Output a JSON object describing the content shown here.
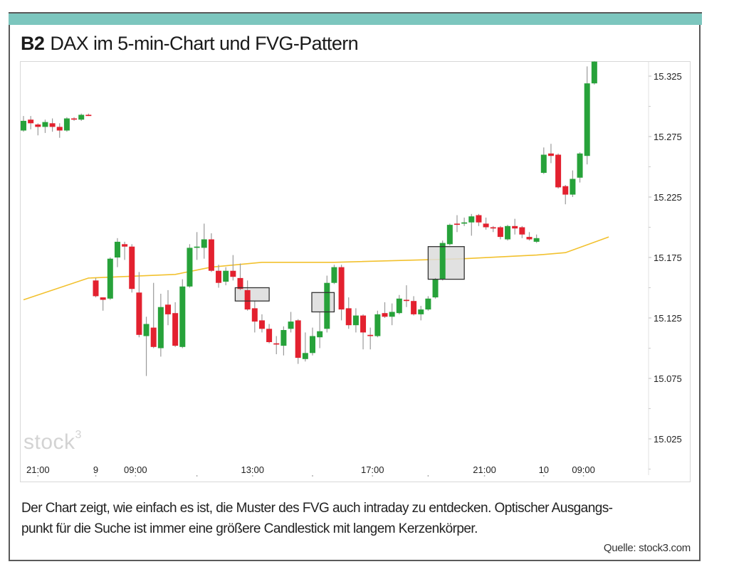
{
  "header": {
    "figure_label": "B2",
    "title": "DAX im 5-min-Chart und FVG-Pattern",
    "accent_color": "#7cc6be"
  },
  "logo": {
    "text": "stock",
    "superscript": "3"
  },
  "caption": {
    "line1": "Der Chart zeigt, wie einfach es ist, die Muster des FVG auch intraday zu entdecken. Optischer Ausgangs-",
    "line2": "punkt für die Suche ist immer eine größere Candlestick mit langem Kerzenkörper."
  },
  "source": "Quelle: stock3.com",
  "chart_data": {
    "type": "candlestick",
    "title": "DAX im 5-min-Chart und FVG-Pattern",
    "colors": {
      "up": "#27a23a",
      "down": "#e3212f",
      "wick": "#9a9a9a",
      "moving_average": "#f2c12e",
      "fvg_box": "#dcdcdc"
    },
    "y_axis": {
      "position": "right",
      "ylim": [
        15000,
        15338
      ],
      "ticks": [
        {
          "value": 15325,
          "label": "15.325"
        },
        {
          "value": 15275,
          "label": "15.275"
        },
        {
          "value": 15225,
          "label": "15.225"
        },
        {
          "value": 15175,
          "label": "15.175"
        },
        {
          "value": 15125,
          "label": "15.125"
        },
        {
          "value": 15075,
          "label": "15.075"
        },
        {
          "value": 15025,
          "label": "15.025"
        }
      ]
    },
    "x_axis": {
      "ticks": [
        {
          "index": 2,
          "label": "21:00"
        },
        {
          "index": 10,
          "label": "9"
        },
        {
          "index": 15.5,
          "label": "09:00"
        },
        {
          "index": 24,
          "label": ""
        },
        {
          "index": 31.7,
          "label": "13:00"
        },
        {
          "index": 40,
          "label": ""
        },
        {
          "index": 48.3,
          "label": "17:00"
        },
        {
          "index": 56,
          "label": ""
        },
        {
          "index": 63.8,
          "label": "21:00"
        },
        {
          "index": 72,
          "label": "10"
        },
        {
          "index": 77.5,
          "label": "09:00"
        }
      ]
    },
    "ohlc": [
      [
        15280,
        15292,
        15279,
        15288
      ],
      [
        15289,
        15292,
        15281,
        15286
      ],
      [
        15285,
        15286,
        15276,
        15283
      ],
      [
        15283,
        15289,
        15278,
        15287
      ],
      [
        15286,
        15290,
        15279,
        15283
      ],
      [
        15283,
        15286,
        15274,
        15280
      ],
      [
        15280,
        15291,
        15279,
        15290
      ],
      [
        15290,
        15291,
        15288,
        15289
      ],
      [
        15289,
        15294,
        15288,
        15293
      ],
      [
        15293,
        15294,
        15292,
        15292
      ],
      [
        15156,
        15158,
        15142,
        15143
      ],
      [
        15142,
        15142,
        15131,
        15140
      ],
      [
        15141,
        15175,
        15140,
        15174
      ],
      [
        15175,
        15191,
        15167,
        15188
      ],
      [
        15186,
        15188,
        15173,
        15184
      ],
      [
        15184,
        15186,
        15146,
        15149
      ],
      [
        15146,
        15163,
        15109,
        15111
      ],
      [
        15110,
        15126,
        15077,
        15120
      ],
      [
        15117,
        15154,
        15100,
        15101
      ],
      [
        15100,
        15145,
        15093,
        15134
      ],
      [
        15136,
        15148,
        15119,
        15128
      ],
      [
        15129,
        15138,
        15101,
        15102
      ],
      [
        15101,
        15157,
        15100,
        15151
      ],
      [
        15151,
        15186,
        15150,
        15183
      ],
      [
        15183,
        15196,
        15173,
        15184
      ],
      [
        15183,
        15203,
        15174,
        15190
      ],
      [
        15190,
        15195,
        15163,
        15164
      ],
      [
        15164,
        15169,
        15150,
        15154
      ],
      [
        15155,
        15167,
        15152,
        15164
      ],
      [
        15164,
        15177,
        15156,
        15159
      ],
      [
        15158,
        15170,
        15148,
        15149
      ],
      [
        15148,
        15156,
        15131,
        15132
      ],
      [
        15133,
        15139,
        15113,
        15122
      ],
      [
        15123,
        15128,
        15113,
        15116
      ],
      [
        15116,
        15120,
        15104,
        15105
      ],
      [
        15104,
        15110,
        15095,
        15103
      ],
      [
        15102,
        15118,
        15094,
        15115
      ],
      [
        15116,
        15130,
        15113,
        15122
      ],
      [
        15123,
        15124,
        15087,
        15092
      ],
      [
        15091,
        15113,
        15089,
        15096
      ],
      [
        15096,
        15117,
        15094,
        15110
      ],
      [
        15109,
        15130,
        15100,
        15114
      ],
      [
        15116,
        15160,
        15113,
        15154
      ],
      [
        15154,
        15169,
        15153,
        15167
      ],
      [
        15167,
        15169,
        15123,
        15132
      ],
      [
        15133,
        15142,
        15116,
        15119
      ],
      [
        15119,
        15133,
        15113,
        15127
      ],
      [
        15127,
        15128,
        15099,
        15113
      ],
      [
        15111,
        15117,
        15099,
        15110
      ],
      [
        15110,
        15131,
        15109,
        15128
      ],
      [
        15129,
        15138,
        15125,
        15126
      ],
      [
        15126,
        15137,
        15119,
        15130
      ],
      [
        15129,
        15144,
        15128,
        15141
      ],
      [
        15140,
        15152,
        15134,
        15139
      ],
      [
        15139,
        15143,
        15127,
        15128
      ],
      [
        15128,
        15135,
        15123,
        15132
      ],
      [
        15132,
        15143,
        15131,
        15141
      ],
      [
        15142,
        15158,
        15141,
        15157
      ],
      [
        15157,
        15189,
        15156,
        15187
      ],
      [
        15186,
        15203,
        15185,
        15202
      ],
      [
        15203,
        15210,
        15196,
        15202
      ],
      [
        15203,
        15208,
        15201,
        15204
      ],
      [
        15204,
        15211,
        15193,
        15209
      ],
      [
        15210,
        15211,
        15201,
        15204
      ],
      [
        15203,
        15208,
        15198,
        15200
      ],
      [
        15200,
        15201,
        15196,
        15199
      ],
      [
        15200,
        15201,
        15190,
        15192
      ],
      [
        15190,
        15202,
        15189,
        15201
      ],
      [
        15201,
        15207,
        15194,
        15199
      ],
      [
        15200,
        15201,
        15191,
        15194
      ],
      [
        15192,
        15196,
        15189,
        15190
      ],
      [
        15188,
        15194,
        15187,
        15191
      ],
      [
        15245,
        15266,
        15244,
        15260
      ],
      [
        15261,
        15269,
        15253,
        15259
      ],
      [
        15260,
        15261,
        15232,
        15233
      ],
      [
        15234,
        15235,
        15219,
        15227
      ],
      [
        15227,
        15247,
        15225,
        15240
      ],
      [
        15241,
        15262,
        15237,
        15261
      ],
      [
        15259,
        15333,
        15252,
        15319
      ],
      [
        15319,
        15338,
        15318,
        15337
      ]
    ],
    "moving_average": [
      [
        0,
        15140
      ],
      [
        9,
        15158
      ],
      [
        21,
        15161
      ],
      [
        26,
        15167
      ],
      [
        33,
        15171
      ],
      [
        43,
        15171
      ],
      [
        61,
        15174
      ],
      [
        71,
        15177
      ],
      [
        75,
        15179
      ],
      [
        81,
        15192
      ]
    ],
    "fvg_boxes": [
      {
        "index_from": 29.3,
        "index_to": 34,
        "low": 15139,
        "high": 15150
      },
      {
        "index_from": 39.9,
        "index_to": 43,
        "low": 15130,
        "high": 15146
      },
      {
        "index_from": 56,
        "index_to": 61,
        "low": 15157,
        "high": 15184
      }
    ]
  }
}
